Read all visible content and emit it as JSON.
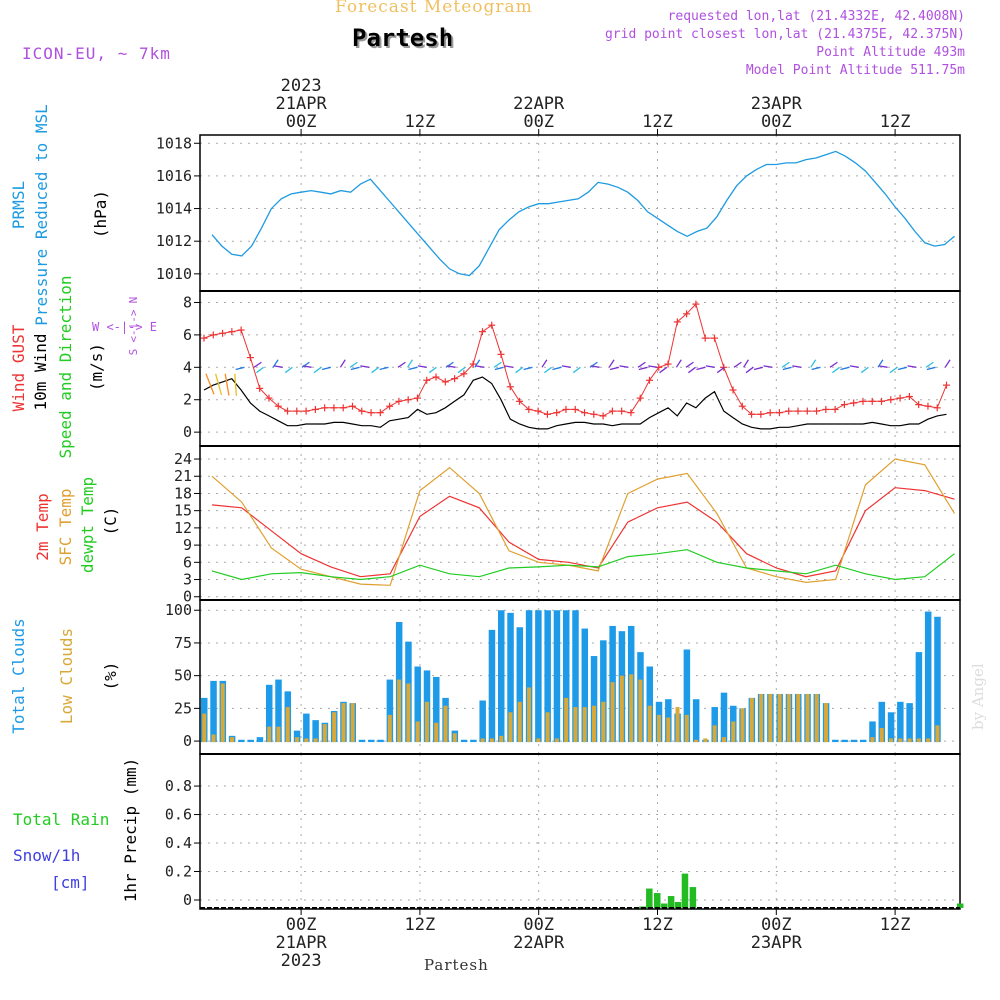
{
  "header": {
    "subtitle": "Forecast Meteogram",
    "title": "Partesh",
    "model": "ICON-EU, ~ 7km",
    "info": [
      "requested lon,lat (21.4332E, 42.4008N)",
      "grid point closest lon,lat (21.4375E, 42.375N)",
      "Point Altitude 493m",
      "Model Point Altitude 511.75m"
    ]
  },
  "time_axis": {
    "top_year": "2023",
    "top_labels": [
      {
        "hour": 9,
        "lines": [
          "21APR",
          "00Z"
        ]
      },
      {
        "hour": 21,
        "lines": [
          "12Z"
        ]
      },
      {
        "hour": 33,
        "lines": [
          "22APR",
          "00Z"
        ]
      },
      {
        "hour": 45,
        "lines": [
          "12Z"
        ]
      },
      {
        "hour": 57,
        "lines": [
          "23APR",
          "00Z"
        ]
      },
      {
        "hour": 69,
        "lines": [
          "12Z"
        ]
      }
    ],
    "bottom_labels": [
      {
        "hour": 9,
        "lines": [
          "00Z",
          "21APR",
          "2023"
        ]
      },
      {
        "hour": 21,
        "lines": [
          "12Z"
        ]
      },
      {
        "hour": 33,
        "lines": [
          "00Z",
          "22APR"
        ]
      },
      {
        "hour": 45,
        "lines": [
          "12Z"
        ]
      },
      {
        "hour": 57,
        "lines": [
          "00Z",
          "23APR"
        ]
      },
      {
        "hour": 69,
        "lines": [
          "12Z"
        ]
      }
    ],
    "footer": "Partesh"
  },
  "side_labels": {
    "pressure": [
      "PRMSL",
      "Pressure Reduced to MSL",
      "(hPa)"
    ],
    "wind": [
      "Wind GUST",
      "10m Wind",
      "Speed and Direction",
      "(m/s)"
    ],
    "compass": [
      "W <-|-> E",
      "N",
      "<-|->",
      "S"
    ],
    "temp": [
      "2m Temp",
      "SFC Temp",
      "dewpt Temp",
      "(C)"
    ],
    "clouds": [
      "Total Clouds",
      "Low Clouds",
      "(%)"
    ],
    "precip_left": [
      "Total   Rain",
      "Snow/1h",
      "[cm]"
    ],
    "precip_axis": "1hr Precip (mm)"
  },
  "watermark": "by Angel",
  "colors": {
    "pressure": "#1e9be0",
    "gust": "#ee3333",
    "wind": "#000000",
    "temp2m": "#ee3333",
    "sfc": "#e0a030",
    "dew": "#22cc22",
    "total_cloud": "#1e9be8",
    "low_cloud": "#d8a838",
    "rain": "#22bb22",
    "snow": "#4040e0",
    "header_info": "#b050e0",
    "subtitle": "#f0c060"
  },
  "chart_data": [
    {
      "type": "line",
      "title": "PRMSL Pressure Reduced to MSL",
      "ylabel": "(hPa)",
      "x_unit": "hours from 20APR 15Z",
      "ylim": [
        1009.5,
        1018.2
      ],
      "yticks": [
        1010,
        1012,
        1014,
        1016,
        1018
      ],
      "x": [
        0,
        1,
        2,
        3,
        4,
        5,
        6,
        7,
        8,
        9,
        10,
        11,
        12,
        13,
        14,
        15,
        16,
        17,
        18,
        19,
        20,
        21,
        22,
        23,
        24,
        25,
        26,
        27,
        28,
        29,
        30,
        31,
        32,
        33,
        34,
        35,
        36,
        37,
        38,
        39,
        40,
        41,
        42,
        43,
        44,
        45,
        46,
        47,
        48,
        49,
        50,
        51,
        52,
        53,
        54,
        55,
        56,
        57,
        58,
        59,
        60,
        61,
        62,
        63,
        64,
        65,
        66,
        67,
        68,
        69,
        70,
        71,
        72,
        73,
        74,
        75
      ],
      "values": [
        1012.4,
        1011.7,
        1011.2,
        1011.1,
        1011.7,
        1012.8,
        1014.0,
        1014.6,
        1014.9,
        1015.0,
        1015.1,
        1015.0,
        1014.9,
        1015.1,
        1015.0,
        1015.5,
        1015.8,
        1015.1,
        1014.4,
        1013.7,
        1013.0,
        1012.3,
        1011.6,
        1010.9,
        1010.3,
        1010.0,
        1009.9,
        1010.5,
        1011.6,
        1012.7,
        1013.3,
        1013.8,
        1014.1,
        1014.3,
        1014.3,
        1014.4,
        1014.5,
        1014.6,
        1015.0,
        1015.6,
        1015.5,
        1015.3,
        1015.0,
        1014.5,
        1013.8,
        1013.4,
        1013.0,
        1012.6,
        1012.3,
        1012.6,
        1012.8,
        1013.5,
        1014.5,
        1015.4,
        1016.0,
        1016.4,
        1016.7,
        1016.7,
        1016.8,
        1016.8,
        1017.0,
        1017.1,
        1017.3,
        1017.5,
        1017.2,
        1016.8,
        1016.3,
        1015.6,
        1014.9,
        1014.1,
        1013.4,
        1012.6,
        1011.9,
        1011.7,
        1011.8,
        1012.3
      ]
    },
    {
      "type": "line",
      "title": "Wind GUST / 10m Wind Speed and Direction",
      "ylabel": "(m/s)",
      "ylim": [
        -0.3,
        8.4
      ],
      "yticks": [
        0,
        2,
        4,
        6,
        8
      ],
      "series": [
        {
          "name": "Wind GUST",
          "values": [
            5.8,
            6.0,
            6.1,
            6.2,
            6.3,
            4.6,
            2.7,
            2.1,
            1.6,
            1.3,
            1.3,
            1.3,
            1.4,
            1.5,
            1.5,
            1.5,
            1.6,
            1.3,
            1.2,
            1.2,
            1.6,
            1.9,
            2.0,
            2.1,
            3.2,
            3.4,
            3.1,
            3.3,
            3.6,
            4.2,
            6.2,
            6.6,
            4.8,
            2.8,
            1.9,
            1.4,
            1.3,
            1.1,
            1.2,
            1.4,
            1.4,
            1.2,
            1.1,
            1.0,
            1.3,
            1.3,
            1.2,
            2.1,
            3.2,
            4.0,
            4.2,
            6.8,
            7.3,
            7.9,
            5.8,
            5.8,
            4.0,
            2.6,
            1.6,
            1.1,
            1.1,
            1.2,
            1.2,
            1.3,
            1.3,
            1.3,
            1.3,
            1.4,
            1.4,
            1.7,
            1.8,
            1.9,
            1.9,
            1.9,
            2.0,
            2.1,
            2.2,
            1.7,
            1.6,
            1.5,
            2.9
          ]
        },
        {
          "name": "10m Wind",
          "values": [
            2.6,
            2.9,
            3.1,
            3.3,
            2.6,
            1.8,
            1.3,
            1.0,
            0.7,
            0.4,
            0.4,
            0.5,
            0.5,
            0.5,
            0.6,
            0.6,
            0.5,
            0.4,
            0.4,
            0.3,
            0.7,
            0.8,
            0.9,
            1.4,
            1.1,
            1.2,
            1.5,
            1.9,
            2.3,
            3.2,
            3.4,
            3.0,
            2.0,
            0.8,
            0.5,
            0.3,
            0.2,
            0.2,
            0.4,
            0.5,
            0.6,
            0.6,
            0.5,
            0.5,
            0.4,
            0.5,
            0.5,
            0.5,
            0.9,
            1.2,
            1.5,
            1.0,
            1.8,
            1.5,
            2.1,
            2.5,
            1.3,
            0.9,
            0.5,
            0.3,
            0.2,
            0.2,
            0.3,
            0.3,
            0.4,
            0.5,
            0.5,
            0.5,
            0.5,
            0.5,
            0.5,
            0.5,
            0.6,
            0.5,
            0.4,
            0.4,
            0.5,
            0.5,
            0.8,
            1.0,
            1.1
          ]
        }
      ],
      "x_gust_step_hours": 0.9375
    },
    {
      "type": "line",
      "title": "2m Temp / SFC Temp / dewpt Temp",
      "ylabel": "(C)",
      "ylim": [
        1,
        25.4
      ],
      "yticks": [
        0,
        3,
        6,
        9,
        12,
        15,
        18,
        21,
        24
      ],
      "x": [
        0,
        3,
        6,
        9,
        12,
        15,
        18,
        21,
        24,
        27,
        30,
        33,
        36,
        39,
        42,
        45,
        48,
        51,
        54,
        57,
        60,
        63,
        66,
        69,
        72,
        75
      ],
      "series": [
        {
          "name": "2m Temp",
          "values": [
            16.0,
            15.5,
            11.5,
            7.5,
            5.2,
            3.5,
            4.0,
            14.0,
            17.5,
            15.5,
            9.5,
            6.5,
            6.0,
            5.0,
            13.0,
            15.5,
            16.5,
            13.0,
            7.5,
            5.0,
            3.5,
            4.5,
            15.0,
            19.0,
            18.5,
            17.0
          ]
        },
        {
          "name": "SFC Temp",
          "values": [
            21.0,
            16.5,
            8.5,
            4.8,
            3.5,
            2.2,
            2.0,
            18.5,
            22.5,
            18.0,
            8.0,
            6.0,
            5.5,
            4.5,
            18.0,
            20.5,
            21.5,
            14.5,
            5.0,
            3.5,
            2.5,
            3.0,
            19.5,
            24.0,
            23.0,
            14.5
          ]
        },
        {
          "name": "dewpt Temp",
          "values": [
            4.5,
            3.0,
            4.0,
            4.2,
            3.5,
            3.0,
            3.5,
            5.5,
            4.0,
            3.5,
            5.0,
            5.2,
            5.5,
            5.2,
            7.0,
            7.5,
            8.2,
            6.0,
            5.0,
            4.5,
            4.0,
            5.5,
            4.0,
            3.0,
            3.5,
            7.5
          ]
        }
      ]
    },
    {
      "type": "bar",
      "title": "Total Clouds / Low Clouds",
      "ylabel": "(%)",
      "ylim": [
        -3,
        104
      ],
      "yticks": [
        0,
        25,
        50,
        75,
        100
      ],
      "bar_step_hours": 0.9375,
      "series": [
        {
          "name": "Total Clouds",
          "values": [
            33,
            46,
            46,
            4,
            1,
            1,
            3,
            43,
            47,
            38,
            8,
            21,
            16,
            14,
            23,
            30,
            29,
            1,
            1,
            1,
            47,
            91,
            76,
            57,
            54,
            49,
            33,
            8,
            1,
            1,
            31,
            85,
            100,
            98,
            87,
            100,
            100,
            100,
            100,
            100,
            100,
            86,
            65,
            77,
            88,
            84,
            88,
            68,
            57,
            30,
            32,
            21,
            70,
            32,
            1,
            26,
            37,
            27,
            25,
            33,
            36,
            36,
            36,
            36,
            36,
            36,
            36,
            29,
            1,
            1,
            1,
            1,
            15,
            30,
            22,
            30,
            29,
            68,
            99,
            95
          ]
        },
        {
          "name": "Low Clouds",
          "values": [
            21,
            5,
            44,
            3,
            0,
            0,
            0,
            11,
            11,
            26,
            3,
            2,
            2,
            13,
            22,
            29,
            29,
            0,
            0,
            0,
            20,
            47,
            44,
            15,
            30,
            14,
            27,
            6,
            0,
            0,
            2,
            2,
            4,
            22,
            30,
            41,
            2,
            22,
            2,
            33,
            26,
            26,
            27,
            30,
            45,
            50,
            51,
            47,
            27,
            20,
            18,
            26,
            20,
            1,
            2,
            12,
            3,
            15,
            25,
            33,
            36,
            36,
            36,
            36,
            36,
            36,
            36,
            29,
            0,
            0,
            0,
            0,
            3,
            10,
            2,
            2,
            2,
            2,
            2,
            12
          ]
        }
      ]
    },
    {
      "type": "bar",
      "title": "1hr Precip",
      "ylabel": "1hr Precip (mm)",
      "ylim": [
        0,
        0.99
      ],
      "yticks": [
        0,
        0.2,
        0.4,
        0.6,
        0.8
      ],
      "series": [
        {
          "name": "Total Rain",
          "x": [
            43.5,
            44.2,
            45.0,
            45.7,
            46.4,
            47.1,
            47.8,
            48.6,
            75.6
          ],
          "values": [
            0.01,
            0.13,
            0.1,
            0.03,
            0.08,
            0.04,
            0.23,
            0.14,
            0.03
          ]
        }
      ]
    }
  ]
}
